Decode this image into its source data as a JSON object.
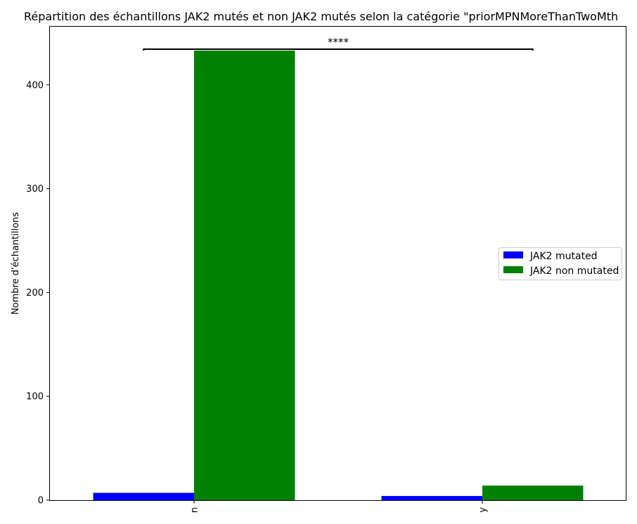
{
  "chart_data": {
    "type": "bar",
    "title": "Répartition des échantillons JAK2 mutés et non JAK2 mutés selon la catégorie \"priorMPNMoreThanTwoMth",
    "xlabel": "",
    "ylabel": "Nombre d'échantillons",
    "categories": [
      "n",
      "y"
    ],
    "series": [
      {
        "name": "JAK2 mutated",
        "color": "#0000ff",
        "values": [
          7,
          4
        ]
      },
      {
        "name": "JAK2 non mutated",
        "color": "#008000",
        "values": [
          433,
          14
        ]
      }
    ],
    "ylim": [
      0,
      456
    ],
    "yticks": [
      0,
      100,
      200,
      300,
      400
    ],
    "grid": false,
    "legend_position": "center-right",
    "annotation": "****"
  }
}
